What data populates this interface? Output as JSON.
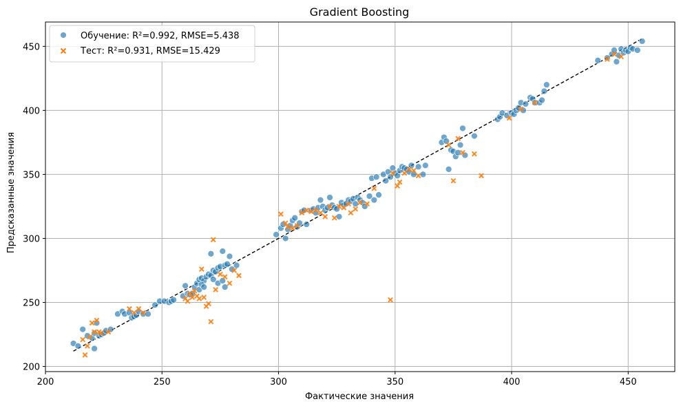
{
  "chart_data": {
    "type": "scatter",
    "title": "Gradient Boosting",
    "xlabel": "Фактические значения",
    "ylabel": "Предсказанные значения",
    "xlim": [
      200,
      470
    ],
    "ylim": [
      196,
      469
    ],
    "xticks": [
      200,
      250,
      300,
      350,
      400,
      450
    ],
    "yticks": [
      200,
      250,
      300,
      350,
      400,
      450
    ],
    "grid": true,
    "legend_position": "top-left",
    "reference_line": {
      "style": "dashed",
      "color": "#000000",
      "from": [
        212,
        212
      ],
      "to": [
        456,
        456
      ]
    },
    "series": [
      {
        "name": "Обучение: R²=0.992, RMSE=5.438",
        "marker": "circle",
        "color": "#1f77b4",
        "points": [
          [
            212,
            218
          ],
          [
            214,
            216
          ],
          [
            216,
            229
          ],
          [
            218,
            224
          ],
          [
            220,
            222
          ],
          [
            221,
            214
          ],
          [
            221,
            226
          ],
          [
            222,
            234
          ],
          [
            223,
            224
          ],
          [
            224,
            225
          ],
          [
            225,
            226
          ],
          [
            226,
            228
          ],
          [
            228,
            229
          ],
          [
            231,
            241
          ],
          [
            233,
            243
          ],
          [
            234,
            241
          ],
          [
            236,
            242
          ],
          [
            237,
            238
          ],
          [
            238,
            239
          ],
          [
            239,
            240
          ],
          [
            240,
            243
          ],
          [
            242,
            241
          ],
          [
            244,
            241
          ],
          [
            247,
            248
          ],
          [
            249,
            251
          ],
          [
            251,
            251
          ],
          [
            253,
            250
          ],
          [
            254,
            251
          ],
          [
            255,
            252
          ],
          [
            259,
            255
          ],
          [
            260,
            263
          ],
          [
            261,
            257
          ],
          [
            262,
            256
          ],
          [
            263,
            257
          ],
          [
            264,
            262
          ],
          [
            265,
            265
          ],
          [
            266,
            268
          ],
          [
            267,
            269
          ],
          [
            268,
            267
          ],
          [
            269,
            270
          ],
          [
            270,
            272
          ],
          [
            271,
            271
          ],
          [
            272,
            275
          ],
          [
            273,
            274
          ],
          [
            274,
            277
          ],
          [
            275,
            278
          ],
          [
            276,
            290
          ],
          [
            277,
            279
          ],
          [
            278,
            280
          ],
          [
            279,
            286
          ],
          [
            280,
            276
          ],
          [
            282,
            279
          ],
          [
            271,
            288
          ],
          [
            272,
            268
          ],
          [
            274,
            265
          ],
          [
            276,
            267
          ],
          [
            277,
            262
          ],
          [
            266,
            260
          ],
          [
            267,
            264
          ],
          [
            268,
            262
          ],
          [
            299,
            303
          ],
          [
            301,
            308
          ],
          [
            302,
            311
          ],
          [
            303,
            300
          ],
          [
            304,
            307
          ],
          [
            305,
            310
          ],
          [
            306,
            314
          ],
          [
            307,
            316
          ],
          [
            308,
            309
          ],
          [
            309,
            312
          ],
          [
            310,
            321
          ],
          [
            311,
            322
          ],
          [
            312,
            311
          ],
          [
            314,
            322
          ],
          [
            315,
            323
          ],
          [
            316,
            320
          ],
          [
            317,
            324
          ],
          [
            318,
            330
          ],
          [
            319,
            325
          ],
          [
            320,
            322
          ],
          [
            321,
            324
          ],
          [
            322,
            332
          ],
          [
            323,
            326
          ],
          [
            324,
            324
          ],
          [
            325,
            323
          ],
          [
            326,
            317
          ],
          [
            327,
            328
          ],
          [
            328,
            326
          ],
          [
            329,
            327
          ],
          [
            330,
            330
          ],
          [
            331,
            329
          ],
          [
            332,
            331
          ],
          [
            333,
            327
          ],
          [
            334,
            332
          ],
          [
            335,
            330
          ],
          [
            336,
            328
          ],
          [
            337,
            325
          ],
          [
            339,
            333
          ],
          [
            340,
            347
          ],
          [
            341,
            330
          ],
          [
            342,
            348
          ],
          [
            343,
            334
          ],
          [
            345,
            350
          ],
          [
            346,
            345
          ],
          [
            347,
            352
          ],
          [
            348,
            348
          ],
          [
            349,
            355
          ],
          [
            350,
            351
          ],
          [
            351,
            349
          ],
          [
            352,
            353
          ],
          [
            353,
            356
          ],
          [
            354,
            355
          ],
          [
            355,
            354
          ],
          [
            356,
            352
          ],
          [
            357,
            357
          ],
          [
            358,
            350
          ],
          [
            360,
            356
          ],
          [
            362,
            350
          ],
          [
            363,
            357
          ],
          [
            370,
            375
          ],
          [
            371,
            379
          ],
          [
            372,
            376
          ],
          [
            373,
            354
          ],
          [
            374,
            369
          ],
          [
            375,
            368
          ],
          [
            376,
            364
          ],
          [
            377,
            367
          ],
          [
            378,
            373
          ],
          [
            379,
            386
          ],
          [
            380,
            365
          ],
          [
            384,
            380
          ],
          [
            394,
            393
          ],
          [
            395,
            395
          ],
          [
            396,
            398
          ],
          [
            398,
            396
          ],
          [
            400,
            398
          ],
          [
            401,
            397
          ],
          [
            402,
            400
          ],
          [
            403,
            402
          ],
          [
            404,
            406
          ],
          [
            405,
            400
          ],
          [
            406,
            405
          ],
          [
            408,
            410
          ],
          [
            409,
            409
          ],
          [
            410,
            406
          ],
          [
            412,
            406
          ],
          [
            413,
            408
          ],
          [
            414,
            415
          ],
          [
            415,
            420
          ],
          [
            437,
            439
          ],
          [
            441,
            441
          ],
          [
            443,
            444
          ],
          [
            444,
            447
          ],
          [
            445,
            438
          ],
          [
            446,
            443
          ],
          [
            447,
            448
          ],
          [
            448,
            445
          ],
          [
            449,
            447
          ],
          [
            450,
            446
          ],
          [
            451,
            449
          ],
          [
            452,
            448
          ],
          [
            454,
            447
          ],
          [
            456,
            454
          ]
        ]
      },
      {
        "name": "Тест: R²=0.931, RMSE=15.429",
        "marker": "x",
        "color": "#ff7f0e",
        "points": [
          [
            216,
            221
          ],
          [
            217,
            209
          ],
          [
            218,
            216
          ],
          [
            219,
            223
          ],
          [
            220,
            234
          ],
          [
            221,
            227
          ],
          [
            222,
            236
          ],
          [
            223,
            227
          ],
          [
            224,
            226
          ],
          [
            227,
            227
          ],
          [
            236,
            245
          ],
          [
            238,
            242
          ],
          [
            240,
            245
          ],
          [
            242,
            242
          ],
          [
            260,
            253
          ],
          [
            261,
            251
          ],
          [
            262,
            257
          ],
          [
            263,
            254
          ],
          [
            264,
            259
          ],
          [
            265,
            255
          ],
          [
            266,
            253
          ],
          [
            267,
            276
          ],
          [
            268,
            254
          ],
          [
            269,
            247
          ],
          [
            270,
            249
          ],
          [
            271,
            235
          ],
          [
            272,
            299
          ],
          [
            273,
            260
          ],
          [
            275,
            272
          ],
          [
            277,
            270
          ],
          [
            279,
            265
          ],
          [
            281,
            275
          ],
          [
            283,
            271
          ],
          [
            301,
            319
          ],
          [
            303,
            312
          ],
          [
            304,
            309
          ],
          [
            306,
            308
          ],
          [
            308,
            310
          ],
          [
            310,
            320
          ],
          [
            312,
            322
          ],
          [
            314,
            321
          ],
          [
            316,
            322
          ],
          [
            318,
            320
          ],
          [
            320,
            317
          ],
          [
            322,
            325
          ],
          [
            324,
            316
          ],
          [
            326,
            325
          ],
          [
            328,
            324
          ],
          [
            330,
            327
          ],
          [
            331,
            320
          ],
          [
            333,
            323
          ],
          [
            335,
            328
          ],
          [
            338,
            327
          ],
          [
            341,
            339
          ],
          [
            348,
            252
          ],
          [
            349,
            351
          ],
          [
            351,
            341
          ],
          [
            352,
            344
          ],
          [
            354,
            351
          ],
          [
            356,
            354
          ],
          [
            358,
            353
          ],
          [
            360,
            349
          ],
          [
            373,
            373
          ],
          [
            375,
            345
          ],
          [
            377,
            378
          ],
          [
            379,
            367
          ],
          [
            384,
            366
          ],
          [
            387,
            349
          ],
          [
            399,
            394
          ],
          [
            404,
            401
          ],
          [
            410,
            406
          ],
          [
            441,
            440
          ],
          [
            444,
            444
          ],
          [
            447,
            442
          ]
        ]
      }
    ]
  }
}
